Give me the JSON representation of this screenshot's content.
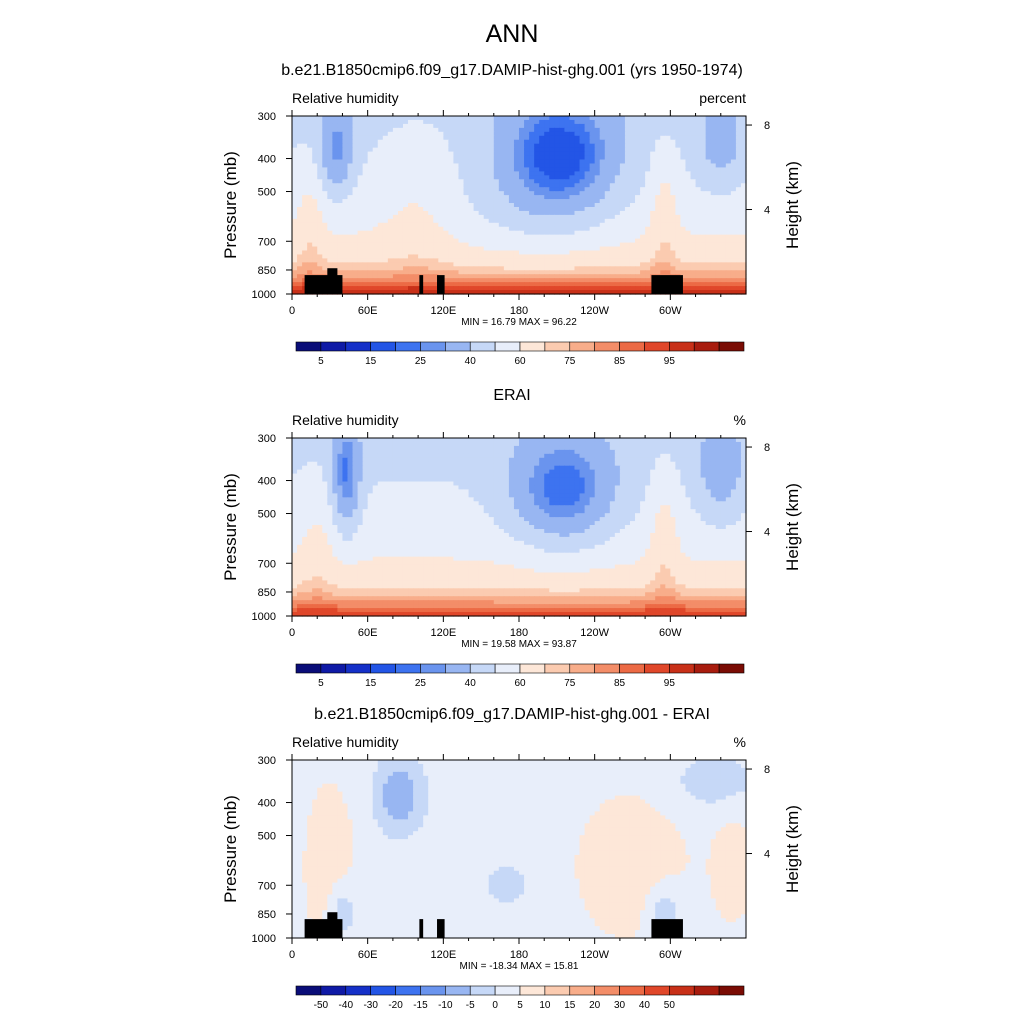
{
  "figure": {
    "title": "ANN"
  },
  "chart_data": [
    {
      "type": "heatmap",
      "title": "b.e21.B1850cmip6.f09_g17.DAMIP-hist-ghg.001 (yrs 1950-1974)",
      "left_label": "Relative humidity",
      "right_label": "percent",
      "xlabel": "",
      "ylabel": "Pressure (mb)",
      "ylabel_right": "Height (km)",
      "x_ticks": [
        "0",
        "60E",
        "120E",
        "180",
        "120W",
        "60W"
      ],
      "x_tick_values": [
        0,
        60,
        120,
        180,
        240,
        300
      ],
      "xlim": [
        0,
        360
      ],
      "y_ticks": [
        "300",
        "400",
        "500",
        "700",
        "850",
        "1000"
      ],
      "y_tick_values": [
        300,
        400,
        500,
        700,
        850,
        1000
      ],
      "ylim": [
        1000,
        300
      ],
      "y_right_ticks": [
        "8",
        "4"
      ],
      "y_right_values": [
        8,
        4
      ],
      "stats": "MIN =  16.79  MAX =  96.22",
      "min": 16.79,
      "max": 96.22,
      "colorbar_labels": [
        "5",
        "15",
        "25",
        "40",
        "60",
        "75",
        "85",
        "95"
      ],
      "levels": [
        5,
        10,
        15,
        20,
        25,
        30,
        40,
        50,
        60,
        70,
        75,
        80,
        85,
        90,
        95
      ],
      "masked_topography": true
    },
    {
      "type": "heatmap",
      "title": "ERAI",
      "left_label": "Relative humidity",
      "right_label": "%",
      "xlabel": "",
      "ylabel": "Pressure (mb)",
      "ylabel_right": "Height (km)",
      "x_ticks": [
        "0",
        "60E",
        "120E",
        "180",
        "120W",
        "60W"
      ],
      "x_tick_values": [
        0,
        60,
        120,
        180,
        240,
        300
      ],
      "xlim": [
        0,
        360
      ],
      "y_ticks": [
        "300",
        "400",
        "500",
        "700",
        "850",
        "1000"
      ],
      "y_tick_values": [
        300,
        400,
        500,
        700,
        850,
        1000
      ],
      "ylim": [
        1000,
        300
      ],
      "y_right_ticks": [
        "8",
        "4"
      ],
      "y_right_values": [
        8,
        4
      ],
      "stats": "MIN =  19.58  MAX =  93.87",
      "min": 19.58,
      "max": 93.87,
      "colorbar_labels": [
        "5",
        "15",
        "25",
        "40",
        "60",
        "75",
        "85",
        "95"
      ],
      "levels": [
        5,
        10,
        15,
        20,
        25,
        30,
        40,
        50,
        60,
        70,
        75,
        80,
        85,
        90,
        95
      ],
      "masked_topography": false
    },
    {
      "type": "heatmap",
      "title": "b.e21.B1850cmip6.f09_g17.DAMIP-hist-ghg.001 - ERAI",
      "left_label": "Relative humidity",
      "right_label": "%",
      "xlabel": "",
      "ylabel": "Pressure (mb)",
      "ylabel_right": "Height (km)",
      "x_ticks": [
        "0",
        "60E",
        "120E",
        "180",
        "120W",
        "60W"
      ],
      "x_tick_values": [
        0,
        60,
        120,
        180,
        240,
        300
      ],
      "xlim": [
        0,
        360
      ],
      "y_ticks": [
        "300",
        "400",
        "500",
        "700",
        "850",
        "1000"
      ],
      "y_tick_values": [
        300,
        400,
        500,
        700,
        850,
        1000
      ],
      "ylim": [
        1000,
        300
      ],
      "y_right_ticks": [
        "8",
        "4"
      ],
      "y_right_values": [
        8,
        4
      ],
      "stats": "MIN = -18.34  MAX =  15.81",
      "min": -18.34,
      "max": 15.81,
      "colorbar_labels": [
        "-50",
        "-40",
        "-30",
        "-20",
        "-15",
        "-10",
        "-5",
        "0",
        "5",
        "10",
        "15",
        "20",
        "30",
        "40",
        "50"
      ],
      "levels": [
        -50,
        -40,
        -30,
        -20,
        -15,
        -10,
        -5,
        0,
        5,
        10,
        15,
        20,
        30,
        40,
        50
      ],
      "masked_topography": true
    }
  ],
  "colors": {
    "palette": [
      "#0a0d78",
      "#0f1aa6",
      "#1530c8",
      "#2355e6",
      "#3d73f0",
      "#6a94ee",
      "#98b6f2",
      "#c6d8f7",
      "#e8eefa",
      "#fde7d8",
      "#fbcbb0",
      "#f8ad8a",
      "#f38d68",
      "#ec6a45",
      "#e0472a",
      "#c83018",
      "#a81c0e",
      "#7a0c04"
    ],
    "mask": "#000000"
  }
}
